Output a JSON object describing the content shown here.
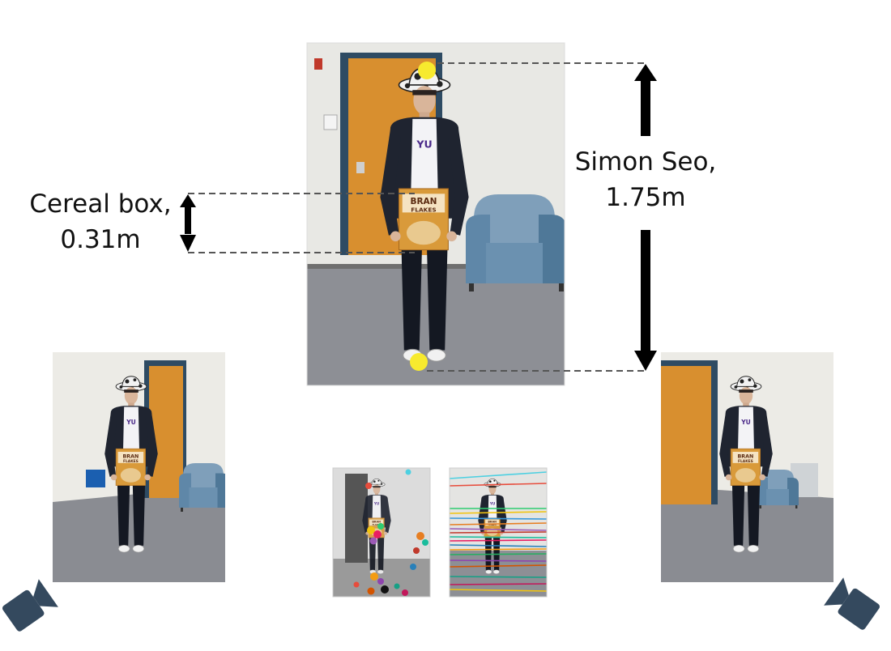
{
  "labels": {
    "cereal": {
      "line1": "Cereal box,",
      "line2": "0.31m"
    },
    "person": {
      "line1": "Simon Seo,",
      "line2": "1.75m"
    }
  },
  "colors": {
    "keypoint": "#f7ea2e",
    "camera_icon": "#34495e",
    "dashed_line": "#555555",
    "arrow": "#000000",
    "jacket": "#1f2430",
    "door": "#d88f2f",
    "chair": "#5f87a8",
    "carpet": "#8d8f95",
    "wall": "#e8e8e4",
    "cereal_box": "#d99a3a"
  },
  "icons": [
    "camera-icon-left",
    "camera-icon-right"
  ]
}
